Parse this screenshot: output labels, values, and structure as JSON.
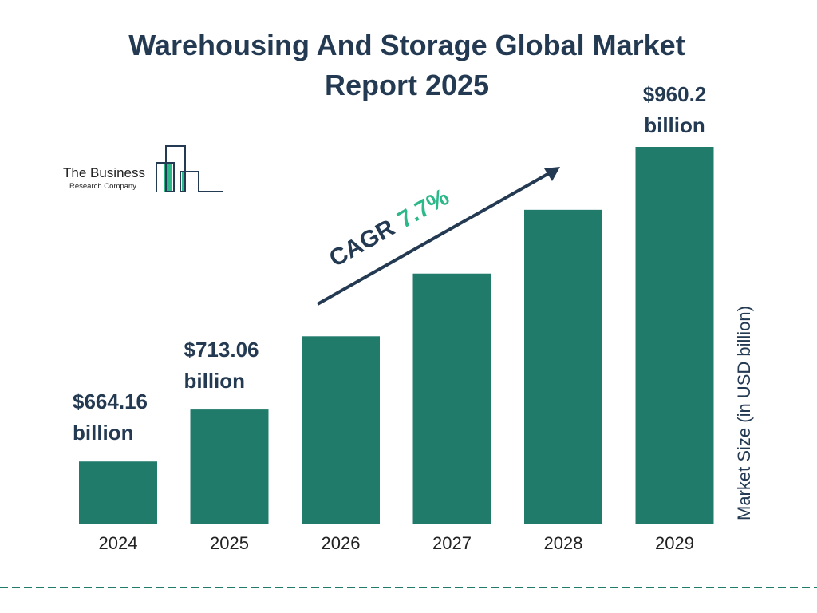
{
  "title": "Warehousing And Storage Global Market Report 2025",
  "logo": {
    "line1": "The Business",
    "line2": "Research Company"
  },
  "colors": {
    "bar": "#217b6b",
    "title": "#233a52",
    "cagr_value": "#2db88a",
    "divider": "#217b6b"
  },
  "chart_data": {
    "type": "bar",
    "title": "Warehousing And Storage Global Market Report 2025",
    "categories": [
      "2024",
      "2025",
      "2026",
      "2027",
      "2028",
      "2029"
    ],
    "values": [
      664.16,
      713.06,
      782,
      841,
      901,
      960.2
    ],
    "data_labels": [
      {
        "index": 0,
        "line1": "$664.16",
        "line2": "billion"
      },
      {
        "index": 1,
        "line1": "$713.06",
        "line2": "billion"
      },
      {
        "index": 5,
        "line1": "$960.2",
        "line2": "billion"
      }
    ],
    "ylabel": "Market Size (in USD billion)",
    "xlabel": "",
    "ylim": [
      605,
      960.2
    ],
    "grid": false,
    "annotation": {
      "label": "CAGR",
      "value": "7.7%"
    }
  }
}
